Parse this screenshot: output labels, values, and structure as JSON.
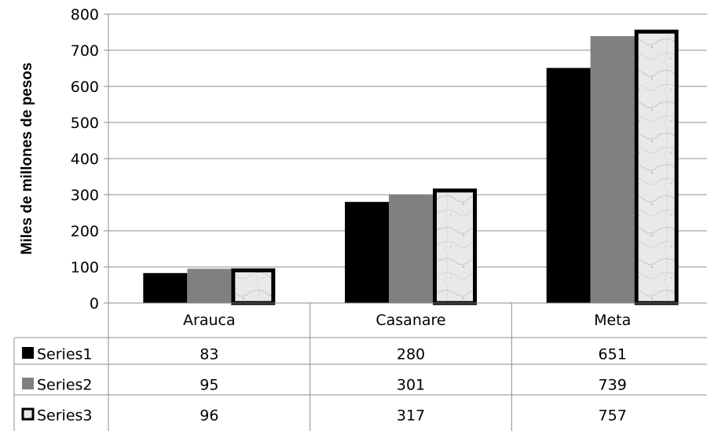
{
  "chart_data": {
    "type": "bar",
    "title": "",
    "xlabel": "",
    "ylabel": "Miles de millones de pesos",
    "categories": [
      "Arauca",
      "Casanare",
      "Meta"
    ],
    "series": [
      {
        "name": "Series1",
        "values": [
          83,
          280,
          651
        ],
        "color": "#000000"
      },
      {
        "name": "Series2",
        "values": [
          95,
          301,
          739
        ],
        "color": "#808080"
      },
      {
        "name": "Series3",
        "values": [
          96,
          317,
          757
        ],
        "color": "#e6e8e8",
        "border": "#000000"
      }
    ],
    "ylim": [
      0,
      800
    ],
    "yticks": [
      0,
      100,
      200,
      300,
      400,
      500,
      600,
      700,
      800
    ],
    "grid": true,
    "legend": "data-table"
  }
}
